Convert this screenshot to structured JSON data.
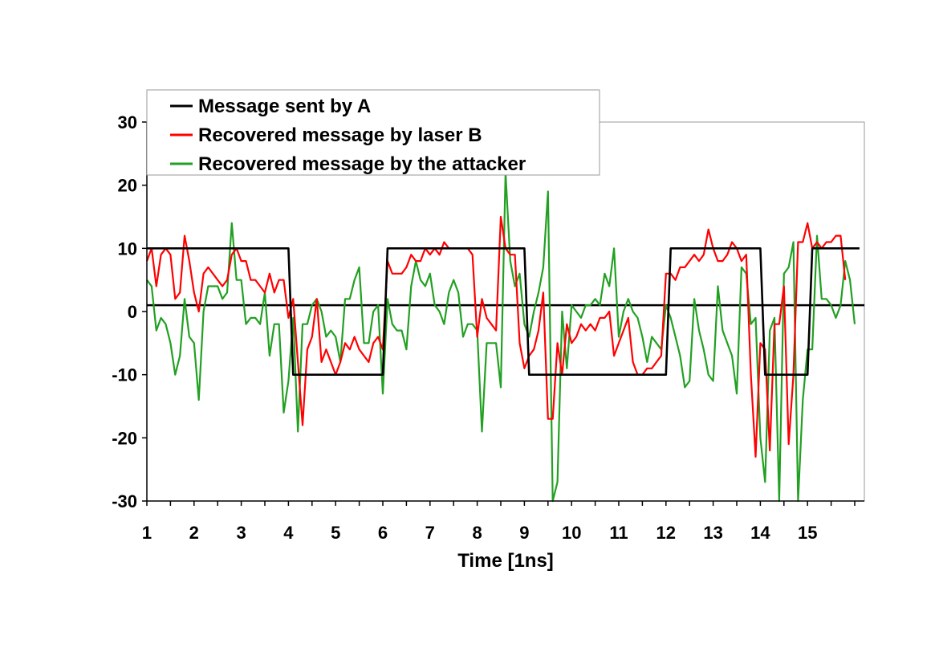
{
  "chart_data": {
    "type": "line",
    "title": "",
    "xlabel": "Time [1ns]",
    "ylabel": "",
    "xlim": [
      1,
      16.2
    ],
    "ylim": [
      -30,
      30
    ],
    "xticks": [
      1,
      2,
      3,
      4,
      5,
      6,
      7,
      8,
      9,
      10,
      11,
      12,
      13,
      14,
      15
    ],
    "yticks": [
      -30,
      -20,
      -10,
      0,
      10,
      20,
      30
    ],
    "grid": false,
    "legend_position": "top-left",
    "reference_line": {
      "y": 1
    },
    "series": [
      {
        "name": "Message sent by A",
        "color": "#000000",
        "points": [
          [
            1,
            10
          ],
          [
            4,
            10
          ],
          [
            4.1,
            -10
          ],
          [
            6,
            -10
          ],
          [
            6.1,
            10
          ],
          [
            9,
            10
          ],
          [
            9.1,
            -10
          ],
          [
            12,
            -10
          ],
          [
            12.1,
            10
          ],
          [
            14,
            10
          ],
          [
            14.1,
            -10
          ],
          [
            15,
            -10
          ],
          [
            15.1,
            10
          ],
          [
            16.1,
            10
          ]
        ]
      },
      {
        "name": "Recovered message by laser B",
        "color": "#ff0000",
        "points": [
          [
            1,
            8
          ],
          [
            1.1,
            10
          ],
          [
            1.2,
            4
          ],
          [
            1.3,
            9
          ],
          [
            1.4,
            10
          ],
          [
            1.5,
            9
          ],
          [
            1.6,
            2
          ],
          [
            1.7,
            3
          ],
          [
            1.8,
            12
          ],
          [
            1.9,
            8
          ],
          [
            2,
            3
          ],
          [
            2.1,
            0
          ],
          [
            2.2,
            6
          ],
          [
            2.3,
            7
          ],
          [
            2.4,
            6
          ],
          [
            2.5,
            5
          ],
          [
            2.6,
            4
          ],
          [
            2.7,
            5
          ],
          [
            2.8,
            9
          ],
          [
            2.9,
            10
          ],
          [
            3,
            8
          ],
          [
            3.1,
            8
          ],
          [
            3.2,
            5
          ],
          [
            3.3,
            5
          ],
          [
            3.4,
            4
          ],
          [
            3.5,
            3
          ],
          [
            3.6,
            6
          ],
          [
            3.7,
            3
          ],
          [
            3.8,
            5
          ],
          [
            3.9,
            5
          ],
          [
            4,
            -1
          ],
          [
            4.1,
            2
          ],
          [
            4.2,
            -8
          ],
          [
            4.3,
            -18
          ],
          [
            4.4,
            -6
          ],
          [
            4.5,
            -4
          ],
          [
            4.6,
            2
          ],
          [
            4.7,
            -8
          ],
          [
            4.8,
            -6
          ],
          [
            4.9,
            -8
          ],
          [
            5,
            -10
          ],
          [
            5.1,
            -8
          ],
          [
            5.2,
            -5
          ],
          [
            5.3,
            -6
          ],
          [
            5.4,
            -4
          ],
          [
            5.5,
            -6
          ],
          [
            5.6,
            -7
          ],
          [
            5.7,
            -8
          ],
          [
            5.8,
            -5
          ],
          [
            5.9,
            -4
          ],
          [
            6,
            -6
          ],
          [
            6.1,
            8
          ],
          [
            6.2,
            6
          ],
          [
            6.3,
            6
          ],
          [
            6.4,
            6
          ],
          [
            6.5,
            7
          ],
          [
            6.6,
            9
          ],
          [
            6.7,
            8
          ],
          [
            6.8,
            8
          ],
          [
            6.9,
            10
          ],
          [
            7,
            9
          ],
          [
            7.1,
            10
          ],
          [
            7.2,
            9
          ],
          [
            7.3,
            11
          ],
          [
            7.4,
            10
          ],
          [
            7.5,
            10
          ],
          [
            7.6,
            10
          ],
          [
            7.7,
            10
          ],
          [
            7.8,
            10
          ],
          [
            7.9,
            9
          ],
          [
            8,
            -4
          ],
          [
            8.1,
            2
          ],
          [
            8.2,
            -1
          ],
          [
            8.3,
            -2
          ],
          [
            8.4,
            -3
          ],
          [
            8.5,
            15
          ],
          [
            8.6,
            10
          ],
          [
            8.7,
            9
          ],
          [
            8.8,
            9
          ],
          [
            8.9,
            -5
          ],
          [
            9,
            -9
          ],
          [
            9.1,
            -7
          ],
          [
            9.2,
            -6
          ],
          [
            9.3,
            -3
          ],
          [
            9.4,
            3
          ],
          [
            9.5,
            -17
          ],
          [
            9.6,
            -17
          ],
          [
            9.7,
            -5
          ],
          [
            9.8,
            -10
          ],
          [
            9.9,
            -2
          ],
          [
            10,
            -5
          ],
          [
            10.1,
            -4
          ],
          [
            10.2,
            -2
          ],
          [
            10.3,
            -3
          ],
          [
            10.4,
            -2
          ],
          [
            10.5,
            -3
          ],
          [
            10.6,
            -1
          ],
          [
            10.7,
            -1
          ],
          [
            10.8,
            0
          ],
          [
            10.9,
            -7
          ],
          [
            11,
            -5
          ],
          [
            11.1,
            -3
          ],
          [
            11.2,
            -1
          ],
          [
            11.3,
            -8
          ],
          [
            11.4,
            -10
          ],
          [
            11.5,
            -10
          ],
          [
            11.6,
            -9
          ],
          [
            11.7,
            -9
          ],
          [
            11.8,
            -8
          ],
          [
            11.9,
            -7
          ],
          [
            12,
            6
          ],
          [
            12.1,
            6
          ],
          [
            12.2,
            5
          ],
          [
            12.3,
            7
          ],
          [
            12.4,
            7
          ],
          [
            12.5,
            8
          ],
          [
            12.6,
            9
          ],
          [
            12.7,
            8
          ],
          [
            12.8,
            9
          ],
          [
            12.9,
            13
          ],
          [
            13,
            10
          ],
          [
            13.1,
            8
          ],
          [
            13.2,
            8
          ],
          [
            13.3,
            9
          ],
          [
            13.4,
            11
          ],
          [
            13.5,
            10
          ],
          [
            13.6,
            8
          ],
          [
            13.7,
            9
          ],
          [
            13.8,
            -10
          ],
          [
            13.9,
            -23
          ],
          [
            14,
            -5
          ],
          [
            14.1,
            -6
          ],
          [
            14.2,
            -22
          ],
          [
            14.3,
            -2
          ],
          [
            14.4,
            -2
          ],
          [
            14.5,
            4
          ],
          [
            14.6,
            -21
          ],
          [
            14.7,
            -10
          ],
          [
            14.8,
            11
          ],
          [
            14.9,
            11
          ],
          [
            15,
            14
          ],
          [
            15.1,
            10
          ],
          [
            15.2,
            11
          ],
          [
            15.3,
            10
          ],
          [
            15.4,
            11
          ],
          [
            15.5,
            11
          ],
          [
            15.6,
            12
          ],
          [
            15.7,
            12
          ],
          [
            15.8,
            5
          ]
        ]
      },
      {
        "name": "Recovered message by the attacker",
        "color": "#22a022",
        "points": [
          [
            1,
            5
          ],
          [
            1.1,
            4
          ],
          [
            1.2,
            -3
          ],
          [
            1.3,
            -1
          ],
          [
            1.4,
            -2
          ],
          [
            1.5,
            -5
          ],
          [
            1.6,
            -10
          ],
          [
            1.7,
            -7
          ],
          [
            1.8,
            2
          ],
          [
            1.9,
            -4
          ],
          [
            2,
            -5
          ],
          [
            2.1,
            -14
          ],
          [
            2.2,
            0
          ],
          [
            2.3,
            4
          ],
          [
            2.4,
            4
          ],
          [
            2.5,
            4
          ],
          [
            2.6,
            2
          ],
          [
            2.7,
            3
          ],
          [
            2.8,
            14
          ],
          [
            2.9,
            5
          ],
          [
            3,
            5
          ],
          [
            3.1,
            -2
          ],
          [
            3.2,
            -1
          ],
          [
            3.3,
            -1
          ],
          [
            3.4,
            -2
          ],
          [
            3.5,
            3
          ],
          [
            3.6,
            -7
          ],
          [
            3.7,
            -2
          ],
          [
            3.8,
            -2
          ],
          [
            3.9,
            -16
          ],
          [
            4,
            -11
          ],
          [
            4.1,
            -1
          ],
          [
            4.2,
            -19
          ],
          [
            4.3,
            -2
          ],
          [
            4.4,
            -2
          ],
          [
            4.5,
            1
          ],
          [
            4.6,
            2
          ],
          [
            4.7,
            0
          ],
          [
            4.8,
            -4
          ],
          [
            4.9,
            -3
          ],
          [
            5,
            -4
          ],
          [
            5.1,
            -8
          ],
          [
            5.2,
            2
          ],
          [
            5.3,
            2
          ],
          [
            5.4,
            5
          ],
          [
            5.5,
            7
          ],
          [
            5.6,
            -5
          ],
          [
            5.7,
            -5
          ],
          [
            5.8,
            0
          ],
          [
            5.9,
            1
          ],
          [
            6,
            -13
          ],
          [
            6.1,
            2
          ],
          [
            6.2,
            -2
          ],
          [
            6.3,
            -3
          ],
          [
            6.4,
            -3
          ],
          [
            6.5,
            -6
          ],
          [
            6.6,
            4
          ],
          [
            6.7,
            8
          ],
          [
            6.8,
            5
          ],
          [
            6.9,
            4
          ],
          [
            7,
            6
          ],
          [
            7.1,
            1
          ],
          [
            7.2,
            0
          ],
          [
            7.3,
            -2
          ],
          [
            7.4,
            3
          ],
          [
            7.5,
            5
          ],
          [
            7.6,
            3
          ],
          [
            7.7,
            -4
          ],
          [
            7.8,
            -2
          ],
          [
            7.9,
            -2
          ],
          [
            8,
            -3
          ],
          [
            8.1,
            -19
          ],
          [
            8.2,
            -5
          ],
          [
            8.3,
            -5
          ],
          [
            8.4,
            -5
          ],
          [
            8.5,
            -12
          ],
          [
            8.6,
            22
          ],
          [
            8.7,
            8
          ],
          [
            8.8,
            4
          ],
          [
            8.9,
            6
          ],
          [
            9,
            -2
          ],
          [
            9.1,
            -4
          ],
          [
            9.2,
            0
          ],
          [
            9.3,
            3
          ],
          [
            9.4,
            7
          ],
          [
            9.5,
            19
          ],
          [
            9.6,
            -30
          ],
          [
            9.7,
            -27
          ],
          [
            9.8,
            0
          ],
          [
            9.9,
            -9
          ],
          [
            10,
            1
          ],
          [
            10.1,
            0
          ],
          [
            10.2,
            -1
          ],
          [
            10.3,
            1
          ],
          [
            10.4,
            1
          ],
          [
            10.5,
            2
          ],
          [
            10.6,
            1
          ],
          [
            10.7,
            6
          ],
          [
            10.8,
            4
          ],
          [
            10.9,
            10
          ],
          [
            11,
            -4
          ],
          [
            11.1,
            0
          ],
          [
            11.2,
            2
          ],
          [
            11.3,
            0
          ],
          [
            11.4,
            -1
          ],
          [
            11.5,
            -4
          ],
          [
            11.6,
            -8
          ],
          [
            11.7,
            -4
          ],
          [
            11.8,
            -5
          ],
          [
            11.9,
            -6
          ],
          [
            12,
            1
          ],
          [
            12.1,
            -1
          ],
          [
            12.2,
            -4
          ],
          [
            12.3,
            -7
          ],
          [
            12.4,
            -12
          ],
          [
            12.5,
            -11
          ],
          [
            12.6,
            2
          ],
          [
            12.7,
            -3
          ],
          [
            12.8,
            -6
          ],
          [
            12.9,
            -10
          ],
          [
            13,
            -11
          ],
          [
            13.1,
            4
          ],
          [
            13.2,
            -3
          ],
          [
            13.3,
            -5
          ],
          [
            13.4,
            -7
          ],
          [
            13.5,
            -13
          ],
          [
            13.6,
            7
          ],
          [
            13.7,
            6
          ],
          [
            13.8,
            -2
          ],
          [
            13.9,
            -1
          ],
          [
            14,
            -20
          ],
          [
            14.1,
            -27
          ],
          [
            14.2,
            -3
          ],
          [
            14.3,
            -1
          ],
          [
            14.4,
            -30
          ],
          [
            14.5,
            6
          ],
          [
            14.6,
            7
          ],
          [
            14.7,
            11
          ],
          [
            14.8,
            -30
          ],
          [
            14.9,
            -14
          ],
          [
            15,
            -6
          ],
          [
            15.1,
            -6
          ],
          [
            15.2,
            12
          ],
          [
            15.3,
            2
          ],
          [
            15.4,
            2
          ],
          [
            15.5,
            1
          ],
          [
            15.6,
            -1
          ],
          [
            15.7,
            1
          ],
          [
            15.8,
            8
          ],
          [
            15.9,
            5
          ],
          [
            16,
            -2
          ]
        ]
      }
    ]
  }
}
